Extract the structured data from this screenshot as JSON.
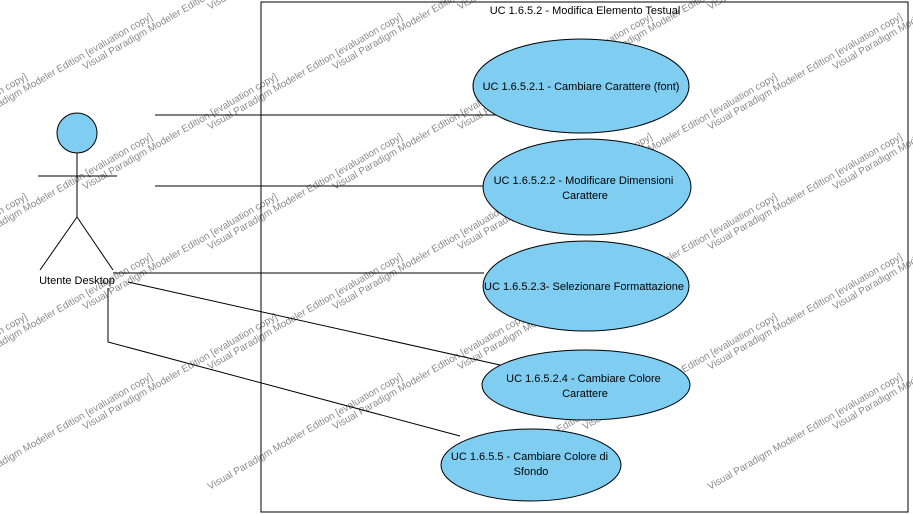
{
  "watermark_text": "Visual Paradigm Modeler Edition [evaluation copy]",
  "system": {
    "title": "UC 1.6.5.2 - Modifica Elemento Testual"
  },
  "actor": {
    "name": "Utente Desktop"
  },
  "use_cases": [
    {
      "lines": [
        "UC 1.6.5.2.1 - Cambiare Carattere (font)"
      ]
    },
    {
      "lines": [
        "UC 1.6.5.2.2 - Modificare Dimensioni",
        "Carattere"
      ]
    },
    {
      "lines": [
        "UC 1.6.5.2.3- Selezionare Formattazione"
      ]
    },
    {
      "lines": [
        "UC 1.6.5.2.4 - Cambiare Colore",
        "Carattere"
      ]
    },
    {
      "lines": [
        "UC 1.6.5.5 - Cambiare Colore di",
        "Sfondo"
      ]
    }
  ],
  "colors": {
    "use_case_fill": "#7fcdf1",
    "actor_head_fill": "#7fcdf1",
    "stroke": "#000000",
    "watermark": "#8a8a8a"
  }
}
